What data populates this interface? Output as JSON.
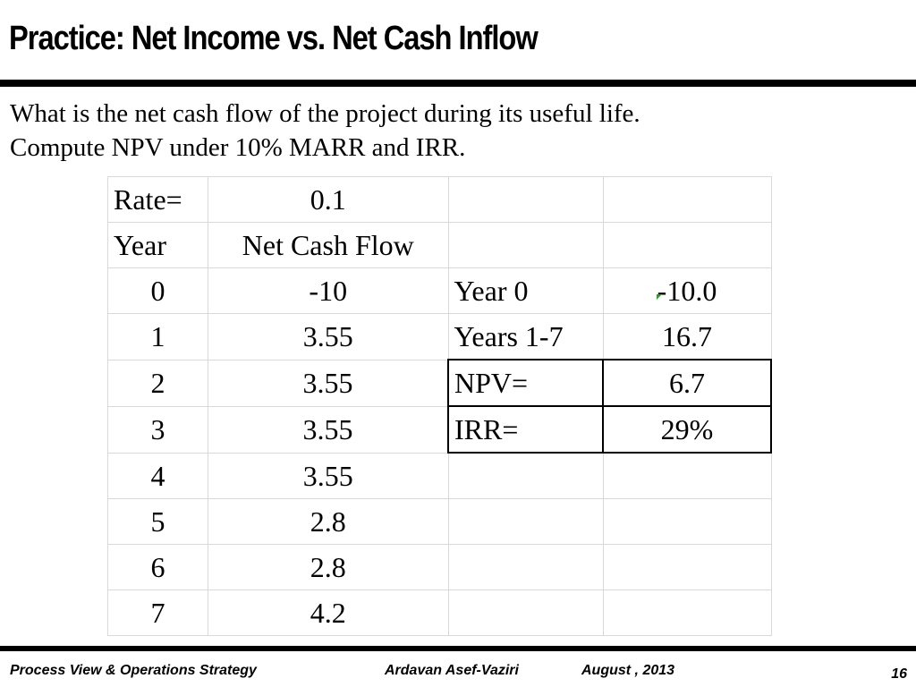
{
  "slide": {
    "title": "Practice: Net Income vs. Net Cash Inflow",
    "question_line1": "What is the net cash flow of the project during its useful life.",
    "question_line2": "Compute NPV under 10% MARR and IRR."
  },
  "sheet": {
    "rate_label": "Rate=",
    "rate_value": "0.1",
    "header_year": "Year",
    "header_flow": "Net Cash Flow",
    "rows": [
      {
        "year": "0",
        "flow": "-10"
      },
      {
        "year": "1",
        "flow": "3.55"
      },
      {
        "year": "2",
        "flow": "3.55"
      },
      {
        "year": "3",
        "flow": "3.55"
      },
      {
        "year": "4",
        "flow": "3.55"
      },
      {
        "year": "5",
        "flow": "2.8"
      },
      {
        "year": "6",
        "flow": "2.8"
      },
      {
        "year": "7",
        "flow": "4.2"
      }
    ],
    "summary": [
      {
        "label": "Year 0",
        "value": "-10.0"
      },
      {
        "label": "Years 1-7",
        "value": "16.7"
      },
      {
        "label": "NPV=",
        "value": "6.7"
      },
      {
        "label": "IRR=",
        "value": "29%"
      }
    ],
    "comment_marker_color": "#2e9e2e"
  },
  "footer": {
    "course": "Process View & Operations Strategy",
    "author": "Ardavan Asef-Vaziri",
    "date": "August , 2013",
    "page": "16"
  }
}
